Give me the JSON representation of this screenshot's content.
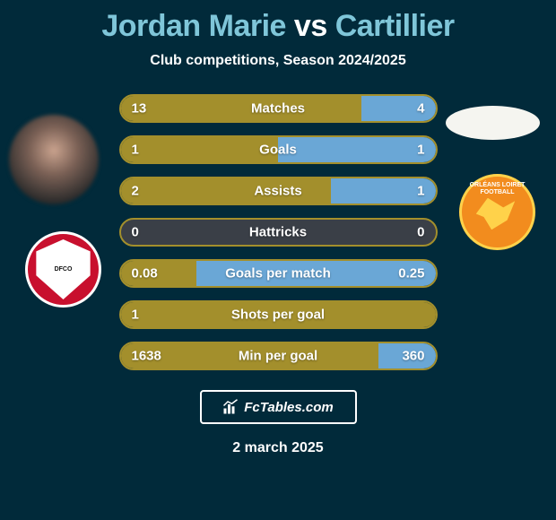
{
  "title_left": "Jordan Marie",
  "title_mid": "vs",
  "title_right": "Cartillier",
  "title_color_left": "#7fc6d9",
  "title_color_mid": "#ffffff",
  "title_color_right": "#7fc6d9",
  "subtitle": "Club competitions, Season 2024/2025",
  "colors": {
    "left_bar": "#a38f2c",
    "right_bar": "#6aa7d6",
    "empty_bar": "#3a3f47",
    "row_border": "#a38f2c",
    "background": "#012a3a"
  },
  "stats": [
    {
      "label": "Matches",
      "left_val": "13",
      "right_val": "4",
      "left_pct": 76.5,
      "right_pct": 23.5
    },
    {
      "label": "Goals",
      "left_val": "1",
      "right_val": "1",
      "left_pct": 50.0,
      "right_pct": 50.0
    },
    {
      "label": "Assists",
      "left_val": "2",
      "right_val": "1",
      "left_pct": 66.7,
      "right_pct": 33.3
    },
    {
      "label": "Hattricks",
      "left_val": "0",
      "right_val": "0",
      "left_pct": 0,
      "right_pct": 0
    },
    {
      "label": "Goals per match",
      "left_val": "0.08",
      "right_val": "0.25",
      "left_pct": 24.2,
      "right_pct": 75.8
    },
    {
      "label": "Shots per goal",
      "left_val": "1",
      "right_val": "",
      "left_pct": 100,
      "right_pct": 0
    },
    {
      "label": "Min per goal",
      "left_val": "1638",
      "right_val": "360",
      "left_pct": 82.0,
      "right_pct": 18.0
    }
  ],
  "left_club": {
    "name_top": "DFCO",
    "bg": "#c8102e"
  },
  "right_club": {
    "name_top": "ORLÉANS LOIRET FOOTBALL",
    "bg": "#f28c1e"
  },
  "footer_brand": "FcTables.com",
  "footer_date": "2 march 2025"
}
